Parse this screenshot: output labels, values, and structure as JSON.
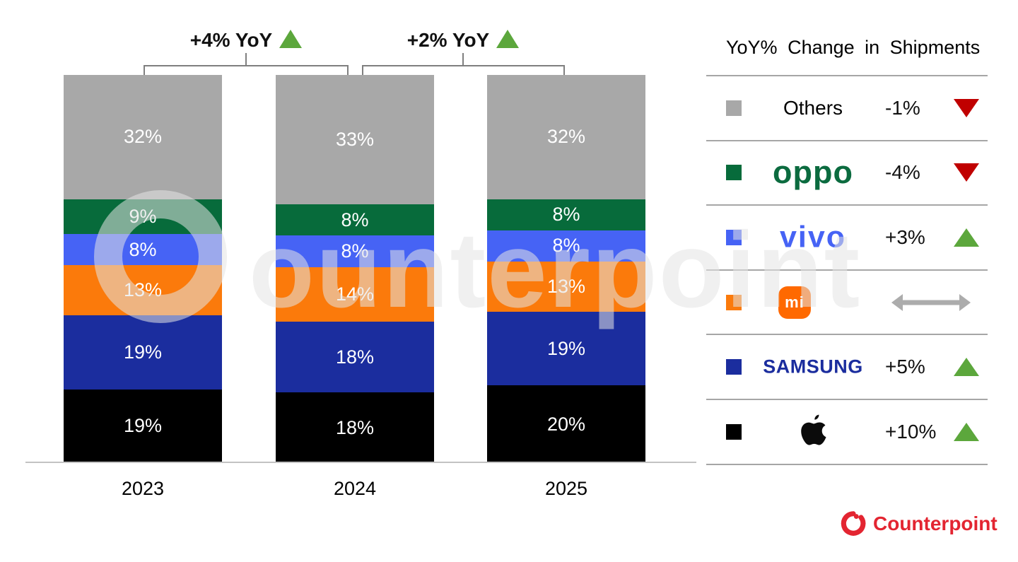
{
  "chart_data": {
    "type": "bar",
    "stacked": true,
    "title": "",
    "categories": [
      "2023",
      "2024",
      "2025"
    ],
    "value_suffix": "%",
    "ylim": [
      0,
      100
    ],
    "grid": false,
    "legend_position": "right",
    "series": [
      {
        "name": "Apple",
        "color": "#000000",
        "values": [
          19,
          18,
          20
        ]
      },
      {
        "name": "Samsung",
        "color": "#1B2D9E",
        "values": [
          19,
          18,
          19
        ]
      },
      {
        "name": "Xiaomi",
        "color": "#FB7A0B",
        "values": [
          13,
          14,
          13
        ]
      },
      {
        "name": "vivo",
        "color": "#4663F5",
        "values": [
          8,
          8,
          8
        ]
      },
      {
        "name": "OPPO",
        "color": "#076B3B",
        "values": [
          9,
          8,
          8
        ]
      },
      {
        "name": "Others",
        "color": "#A8A8A8",
        "values": [
          32,
          33,
          32
        ]
      }
    ],
    "totals_yoy": [
      {
        "label": "+4% YoY",
        "direction": "up",
        "between": [
          "2023",
          "2024"
        ]
      },
      {
        "label": "+2% YoY",
        "direction": "up",
        "between": [
          "2024",
          "2025"
        ]
      }
    ]
  },
  "legend": {
    "title": "YoY% Change in Shipments",
    "rows": [
      {
        "brand": "Others",
        "change": "-1%",
        "direction": "down",
        "swatch": "#A8A8A8"
      },
      {
        "brand": "oppo",
        "change": "-4%",
        "direction": "down",
        "swatch": "#076B3B"
      },
      {
        "brand": "vivo",
        "change": "+3%",
        "direction": "up",
        "swatch": "#4663F5"
      },
      {
        "brand": "mi",
        "change": "",
        "direction": "flat",
        "swatch": "#FB7A0B"
      },
      {
        "brand": "SAMSUNG",
        "change": "+5%",
        "direction": "up",
        "swatch": "#1B2D9E"
      },
      {
        "brand": "Apple",
        "change": "+10%",
        "direction": "up",
        "swatch": "#000000"
      }
    ],
    "colors": {
      "up": "#5CA73C",
      "down": "#C00000",
      "flat": "#ACACAC"
    }
  },
  "watermark": {
    "text": "Counterpoint"
  },
  "footer": {
    "brand": "Counterpoint",
    "color": "#E32531"
  }
}
